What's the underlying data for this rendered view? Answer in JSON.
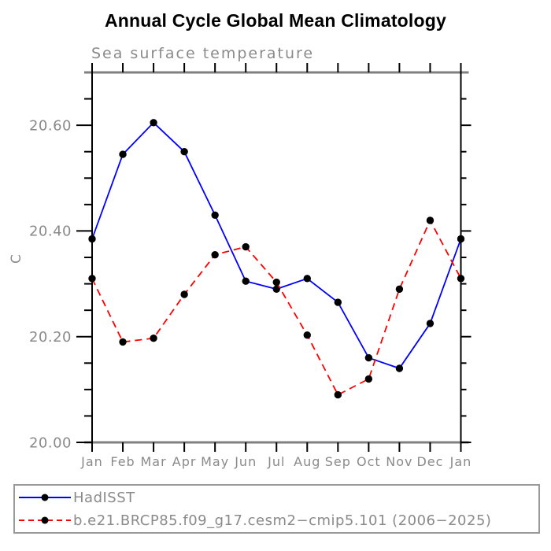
{
  "figure": {
    "title": "Annual Cycle Global Mean Climatology",
    "subtitle": "Sea surface temperature",
    "y_axis_label": "C"
  },
  "legend": {
    "entries": [
      {
        "label": "HadISST",
        "line_color": "#0000ff",
        "line_style": "solid",
        "marker": "black-filled-circle"
      },
      {
        "label": "b.e21.BRCP85.f09_g17.cesm2−cmip5.101 (2006−2025)",
        "line_color": "#ff0000",
        "line_style": "dashed",
        "marker": "black-filled-circle"
      }
    ]
  },
  "chart_data": {
    "type": "line",
    "title": "Annual Cycle Global Mean Climatology",
    "subtitle": "Sea surface temperature",
    "xlabel": "",
    "ylabel": "C",
    "categories": [
      "Jan",
      "Feb",
      "Mar",
      "Apr",
      "May",
      "Jun",
      "Jul",
      "Aug",
      "Sep",
      "Oct",
      "Nov",
      "Dec",
      "Jan"
    ],
    "series": [
      {
        "name": "HadISST",
        "color": "#0000ff",
        "style": "solid",
        "values": [
          20.385,
          20.545,
          20.605,
          20.55,
          20.43,
          20.305,
          20.29,
          20.31,
          20.265,
          20.16,
          20.14,
          20.225,
          20.385
        ]
      },
      {
        "name": "b.e21.BRCP85.f09_g17.cesm2−cmip5.101 (2006−2025)",
        "color": "#ff0000",
        "style": "dashed",
        "values": [
          20.31,
          20.19,
          20.197,
          20.28,
          20.355,
          20.37,
          20.303,
          20.203,
          20.09,
          20.12,
          20.29,
          20.42,
          20.31
        ]
      }
    ],
    "ylim": [
      20.0,
      20.7
    ],
    "ytick_major": [
      20.0,
      20.2,
      20.4,
      20.6
    ],
    "ytick_labels": [
      "20.00",
      "20.20",
      "20.40",
      "20.60"
    ],
    "ytick_minor_step": 0.05,
    "marker_color": "#000000",
    "grid": false,
    "legend_position": "bottom-left-box"
  },
  "colors": {
    "axis_frame_horizontal": "#808080",
    "axis_frame_vertical": "#000000",
    "tick": "#000000",
    "text_gray": "#8a8a8a",
    "title_black": "#000000",
    "background": "#ffffff"
  }
}
